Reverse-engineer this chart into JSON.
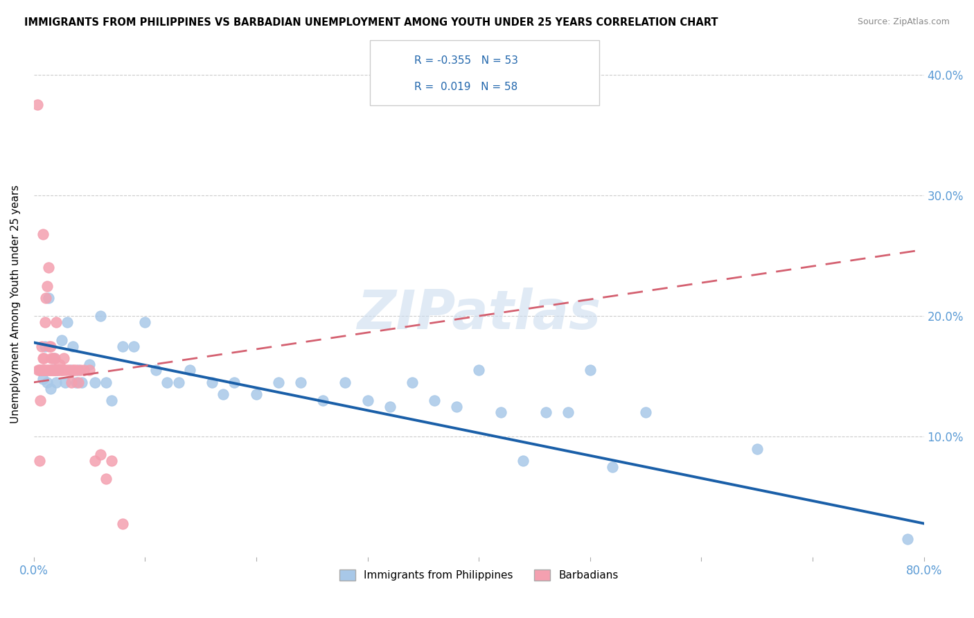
{
  "title": "IMMIGRANTS FROM PHILIPPINES VS BARBADIAN UNEMPLOYMENT AMONG YOUTH UNDER 25 YEARS CORRELATION CHART",
  "source": "Source: ZipAtlas.com",
  "ylabel": "Unemployment Among Youth under 25 years",
  "legend_blue_r": "-0.355",
  "legend_blue_n": "53",
  "legend_pink_r": "0.019",
  "legend_pink_n": "58",
  "legend_label_blue": "Immigrants from Philippines",
  "legend_label_pink": "Barbadians",
  "blue_color": "#a8c8e8",
  "pink_color": "#f4a0b0",
  "blue_line_color": "#1a5fa8",
  "pink_line_color": "#d46070",
  "watermark": "ZIPatlas",
  "blue_R": -0.355,
  "blue_N": 53,
  "pink_R": 0.019,
  "pink_N": 58,
  "xlim": [
    0,
    0.8
  ],
  "ylim": [
    0,
    0.42
  ],
  "blue_scatter_x": [
    0.005,
    0.008,
    0.01,
    0.012,
    0.013,
    0.015,
    0.016,
    0.018,
    0.02,
    0.022,
    0.025,
    0.028,
    0.03,
    0.033,
    0.035,
    0.038,
    0.04,
    0.043,
    0.05,
    0.055,
    0.06,
    0.065,
    0.07,
    0.08,
    0.09,
    0.1,
    0.11,
    0.12,
    0.13,
    0.14,
    0.16,
    0.17,
    0.18,
    0.2,
    0.22,
    0.24,
    0.26,
    0.28,
    0.3,
    0.32,
    0.34,
    0.36,
    0.38,
    0.4,
    0.42,
    0.44,
    0.46,
    0.48,
    0.5,
    0.52,
    0.55,
    0.65,
    0.785
  ],
  "blue_scatter_y": [
    0.155,
    0.148,
    0.175,
    0.145,
    0.215,
    0.14,
    0.155,
    0.165,
    0.145,
    0.155,
    0.18,
    0.145,
    0.195,
    0.155,
    0.175,
    0.145,
    0.155,
    0.145,
    0.16,
    0.145,
    0.2,
    0.145,
    0.13,
    0.175,
    0.175,
    0.195,
    0.155,
    0.145,
    0.145,
    0.155,
    0.145,
    0.135,
    0.145,
    0.135,
    0.145,
    0.145,
    0.13,
    0.145,
    0.13,
    0.125,
    0.145,
    0.13,
    0.125,
    0.155,
    0.12,
    0.08,
    0.12,
    0.12,
    0.155,
    0.075,
    0.12,
    0.09,
    0.015
  ],
  "pink_scatter_x": [
    0.003,
    0.004,
    0.005,
    0.005,
    0.006,
    0.006,
    0.007,
    0.007,
    0.008,
    0.008,
    0.009,
    0.009,
    0.01,
    0.01,
    0.011,
    0.011,
    0.012,
    0.012,
    0.013,
    0.013,
    0.014,
    0.014,
    0.015,
    0.015,
    0.016,
    0.016,
    0.017,
    0.017,
    0.018,
    0.018,
    0.019,
    0.019,
    0.02,
    0.02,
    0.021,
    0.022,
    0.023,
    0.024,
    0.025,
    0.026,
    0.027,
    0.028,
    0.03,
    0.032,
    0.034,
    0.036,
    0.038,
    0.04,
    0.042,
    0.045,
    0.05,
    0.055,
    0.06,
    0.065,
    0.07,
    0.08,
    0.008,
    0.035
  ],
  "pink_scatter_y": [
    0.375,
    0.155,
    0.08,
    0.155,
    0.13,
    0.155,
    0.155,
    0.175,
    0.155,
    0.165,
    0.155,
    0.165,
    0.155,
    0.195,
    0.155,
    0.215,
    0.155,
    0.225,
    0.155,
    0.24,
    0.155,
    0.175,
    0.155,
    0.175,
    0.155,
    0.165,
    0.155,
    0.165,
    0.155,
    0.155,
    0.155,
    0.165,
    0.155,
    0.195,
    0.155,
    0.155,
    0.16,
    0.155,
    0.155,
    0.155,
    0.165,
    0.155,
    0.155,
    0.155,
    0.145,
    0.155,
    0.155,
    0.145,
    0.155,
    0.155,
    0.155,
    0.08,
    0.085,
    0.065,
    0.08,
    0.028,
    0.268,
    0.155
  ]
}
